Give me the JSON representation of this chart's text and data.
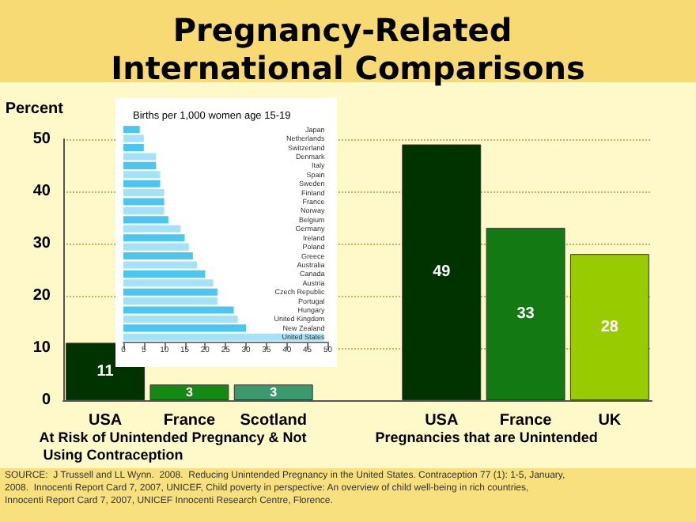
{
  "chart_data": [
    {
      "type": "bar",
      "title": "Pregnancy-Related International Comparisons",
      "ylabel": "Percent",
      "categories": [
        "USA",
        "France",
        "Scotland",
        null,
        "USA",
        "France",
        "UK"
      ],
      "values": [
        11,
        3,
        3,
        null,
        49,
        33,
        28
      ],
      "colors": [
        "#003300",
        "#138a13",
        "#3a9a6e",
        "#003300",
        "#003300",
        "#137a13",
        "#99cc00"
      ],
      "ylim": [
        0,
        50
      ],
      "yticks": [
        0,
        10,
        20,
        30,
        40,
        50
      ],
      "grid": "y",
      "data_labels": true,
      "annotations": [
        "At Risk of Unintended Pregnancy & Not Using Contraception",
        "Pregnancies that are Unintended",
        "SOURCE:  J Trussell and LL Wynn.  2008.  Reducing Unintended Pregnancy in the United States. Contraception 77 (1): 1-5, January, 2008.  Innocenti Report Card 7, 2007, UNICEF, Child poverty in perspective: An overview of child well-being in rich countries, Innocenti Report Card 7, 2007, UNICEF Innocenti Research Centre, Florence."
      ]
    },
    {
      "type": "bar",
      "orientation": "horizontal",
      "title": "Births per 1,000 women age 15-19",
      "categories": [
        "Japan",
        "Netherlands",
        "Switzerland",
        "Denmark",
        "Italy",
        "Spain",
        "Sweden",
        "Finland",
        "France",
        "Norway",
        "Belgium",
        "Germany",
        "Ireland",
        "Poland",
        "Greece",
        "Australia",
        "Canada",
        "Austria",
        "Czech Republic",
        "Portugal",
        "Hungary",
        "United Kingdom",
        "New Zealand",
        "United States"
      ],
      "values": [
        4,
        5,
        5,
        8,
        8,
        9,
        9,
        10,
        10,
        10,
        11,
        14,
        15,
        16,
        17,
        18,
        20,
        22,
        23,
        23,
        27,
        28,
        30,
        49
      ],
      "colors": [
        "#4cc6ee",
        "#a6e2f7",
        "#4cc6ee",
        "#a6e2f7",
        "#4cc6ee",
        "#a6e2f7",
        "#4cc6ee",
        "#a6e2f7",
        "#4cc6ee",
        "#a6e2f7",
        "#4cc6ee",
        "#a6e2f7",
        "#4cc6ee",
        "#a6e2f7",
        "#4cc6ee",
        "#a6e2f7",
        "#4cc6ee",
        "#a6e2f7",
        "#4cc6ee",
        "#a6e2f7",
        "#4cc6ee",
        "#a6e2f7",
        "#4cc6ee",
        "#a6e2f7"
      ],
      "xlim": [
        0,
        50
      ],
      "xticks": [
        0,
        5,
        10,
        15,
        20,
        25,
        30,
        35,
        40,
        45,
        50
      ]
    }
  ]
}
